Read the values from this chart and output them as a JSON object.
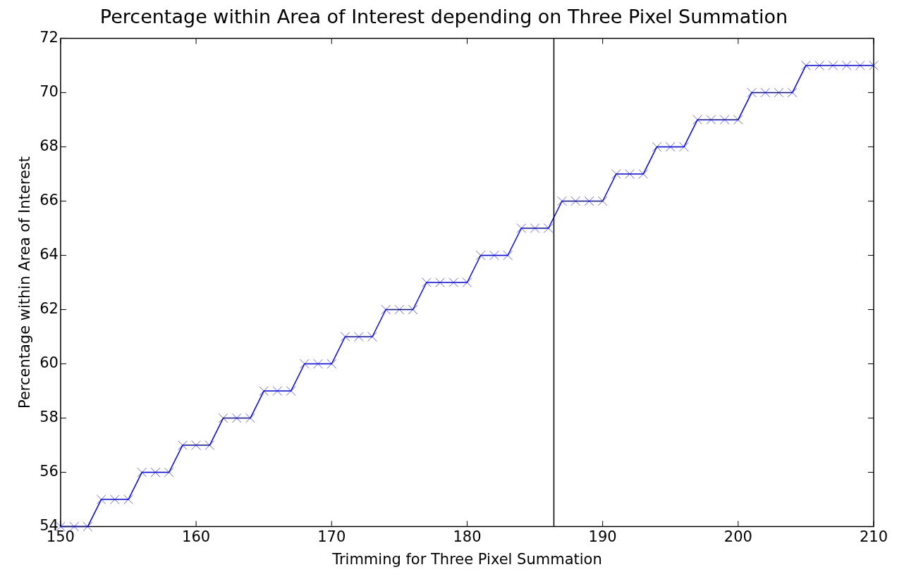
{
  "chart_data": {
    "type": "line",
    "title": "Percentage within Area of Interest depending on Three Pixel Summation",
    "xlabel": "Trimming for Three Pixel Summation",
    "ylabel": "Percentage within Area of Interest",
    "x": [
      150,
      151,
      152,
      153,
      154,
      155,
      156,
      157,
      158,
      159,
      160,
      161,
      162,
      163,
      164,
      165,
      166,
      167,
      168,
      169,
      170,
      171,
      172,
      173,
      174,
      175,
      176,
      177,
      178,
      179,
      180,
      181,
      182,
      183,
      184,
      185,
      186,
      187,
      188,
      189,
      190,
      191,
      192,
      193,
      194,
      195,
      196,
      197,
      198,
      199,
      200,
      201,
      202,
      203,
      204,
      205,
      206,
      207,
      208,
      209,
      210
    ],
    "series": [
      {
        "color": "#0000ff",
        "values": [
          54,
          54,
          54,
          55,
          55,
          55,
          56,
          56,
          56,
          57,
          57,
          57,
          58,
          58,
          58,
          59,
          59,
          59,
          60,
          60,
          60,
          61,
          61,
          61,
          62,
          62,
          62,
          63,
          63,
          63,
          63,
          64,
          64,
          64,
          65,
          65,
          65,
          66,
          66,
          66,
          66,
          67,
          67,
          67,
          68,
          68,
          68,
          69,
          69,
          69,
          69,
          70,
          70,
          70,
          70,
          71,
          71,
          71,
          71,
          71,
          71
        ]
      }
    ],
    "xlim": [
      150,
      210
    ],
    "ylim": [
      54,
      72
    ],
    "xticks": [
      150,
      160,
      170,
      180,
      190,
      200,
      210
    ],
    "yticks": [
      54,
      56,
      58,
      60,
      62,
      64,
      66,
      68,
      70,
      72
    ],
    "ref_lines": [
      {
        "axis": "x",
        "value": 186.4,
        "color": "#000000"
      }
    ],
    "grid": false,
    "legend": false,
    "marker": "cross",
    "line_style": "solid"
  }
}
